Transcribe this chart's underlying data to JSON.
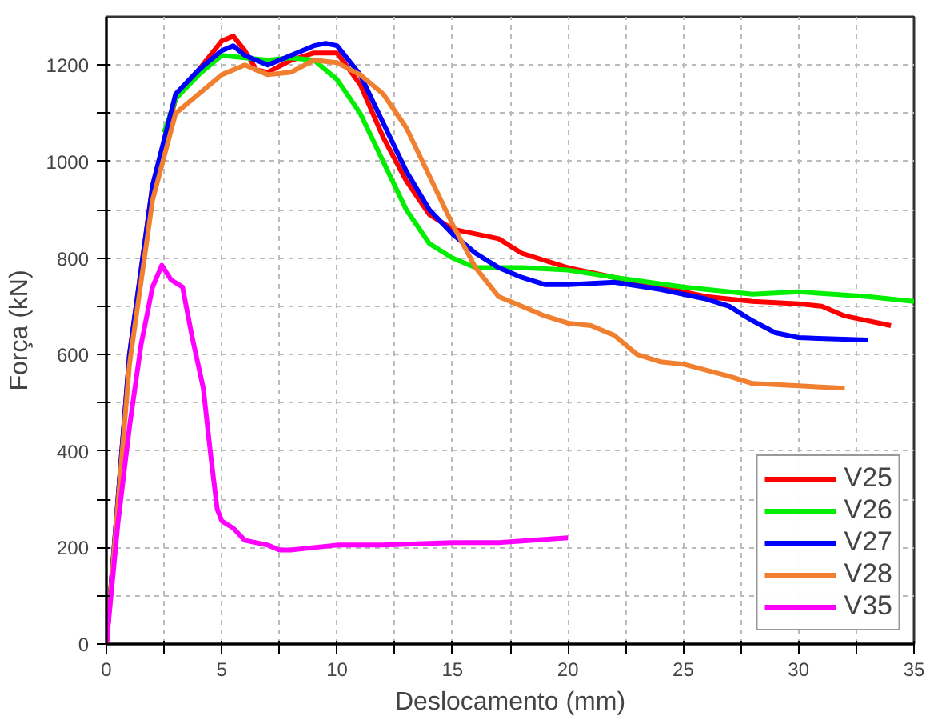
{
  "chart_data": {
    "type": "line",
    "xlabel": "Deslocamento (mm)",
    "ylabel": "Força (kN)",
    "xlim": [
      0,
      35
    ],
    "ylim": [
      0,
      1300
    ],
    "xticks": [
      0,
      {
        "value": 2.5,
        "label": null
      },
      5,
      {
        "value": 7.5,
        "label": null
      },
      10,
      {
        "value": 12.5,
        "label": null
      },
      15,
      {
        "value": 17.5,
        "label": null
      },
      20,
      {
        "value": 22.5,
        "label": null
      },
      25,
      {
        "value": 27.5,
        "label": null
      },
      30,
      {
        "value": 32.5,
        "label": null
      },
      35
    ],
    "yticks": [
      0,
      {
        "value": 100,
        "label": null
      },
      200,
      {
        "value": 300,
        "label": null
      },
      400,
      {
        "value": 500,
        "label": null
      },
      600,
      {
        "value": 700,
        "label": null
      },
      800,
      {
        "value": 900,
        "label": null
      },
      1000,
      {
        "value": 1100,
        "label": null
      },
      1200
    ],
    "grid": true,
    "legend": "bottom right",
    "marker": "none",
    "line_style": "solid",
    "series": [
      {
        "name": "V25",
        "color": "#ff0000",
        "x": [
          0,
          1,
          2,
          3,
          4,
          5,
          5.5,
          6,
          6.5,
          7,
          8,
          9,
          10,
          11,
          12,
          13,
          14,
          15,
          16,
          17,
          18,
          20,
          22,
          24,
          26,
          28,
          30,
          31,
          32,
          34
        ],
        "values": [
          0,
          600,
          950,
          1130,
          1190,
          1250,
          1260,
          1230,
          1190,
          1185,
          1210,
          1225,
          1225,
          1160,
          1050,
          960,
          890,
          860,
          850,
          840,
          810,
          780,
          760,
          740,
          720,
          710,
          705,
          700,
          680,
          660
        ]
      },
      {
        "name": "V26",
        "color": "#00ee00",
        "x": [
          2.5,
          3,
          4,
          5,
          6,
          7,
          8,
          9,
          10,
          11,
          12,
          13,
          14,
          15,
          16,
          18,
          20,
          22,
          25,
          28,
          30,
          33,
          35
        ],
        "values": [
          1060,
          1130,
          1180,
          1220,
          1215,
          1210,
          1215,
          1210,
          1170,
          1100,
          1000,
          900,
          830,
          800,
          780,
          780,
          775,
          760,
          740,
          725,
          730,
          720,
          710
        ]
      },
      {
        "name": "V27",
        "color": "#0000ff",
        "x": [
          0,
          1,
          2,
          3,
          4,
          5,
          5.5,
          6,
          7,
          8,
          9,
          9.5,
          10,
          11,
          12,
          13,
          14,
          15,
          16,
          17,
          18,
          19,
          20,
          22,
          24,
          26,
          27,
          28,
          29,
          30,
          33
        ],
        "values": [
          0,
          600,
          950,
          1140,
          1190,
          1230,
          1240,
          1220,
          1200,
          1220,
          1240,
          1245,
          1240,
          1180,
          1080,
          980,
          900,
          850,
          810,
          780,
          760,
          745,
          745,
          750,
          735,
          715,
          700,
          670,
          645,
          635,
          630
        ]
      },
      {
        "name": "V28",
        "color": "#f08030",
        "x": [
          0,
          1,
          2,
          3,
          4,
          5,
          6,
          7,
          8,
          9,
          10,
          11,
          12,
          13,
          14,
          15,
          16,
          17,
          18,
          19,
          20,
          21,
          22,
          23,
          24,
          25,
          27,
          28,
          30,
          32
        ],
        "values": [
          0,
          580,
          920,
          1100,
          1140,
          1180,
          1200,
          1180,
          1185,
          1210,
          1205,
          1180,
          1140,
          1070,
          970,
          870,
          780,
          720,
          700,
          680,
          665,
          660,
          640,
          600,
          585,
          580,
          555,
          540,
          535,
          530
        ]
      },
      {
        "name": "V35",
        "color": "#ff00ff",
        "x": [
          0,
          0.5,
          1,
          1.5,
          2,
          2.4,
          2.8,
          3.3,
          3.7,
          4.2,
          4.5,
          4.8,
          5,
          5.5,
          6,
          7,
          7.5,
          8,
          9,
          10,
          12,
          15,
          17,
          20
        ],
        "values": [
          0,
          250,
          450,
          620,
          740,
          785,
          755,
          740,
          640,
          530,
          400,
          280,
          255,
          240,
          215,
          205,
          195,
          195,
          200,
          205,
          205,
          210,
          210,
          220
        ]
      }
    ]
  }
}
